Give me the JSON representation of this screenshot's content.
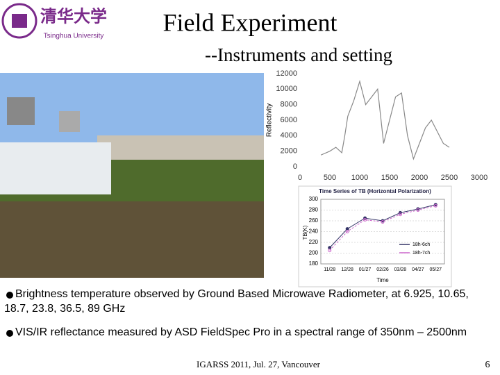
{
  "header": {
    "logo_name": "清华大学",
    "logo_subtitle": "Tsinghua University",
    "title": "Field Experiment",
    "subtitle": "--Instruments and setting"
  },
  "bullets": [
    "Brightness temperature observed by Ground Based Microwave Radiometer, at 6.925, 10.65, 18.7, 23.8, 36.5, 89 GHz",
    "VIS/IR reflectance measured by ASD FieldSpec Pro in a spectral range of 350nm – 2500nm"
  ],
  "footer": {
    "text": "IGARSS 2011, Jul. 27, Vancouver",
    "page": "6"
  },
  "chart_data": [
    {
      "type": "line",
      "y_label": "Reflectivity",
      "x": [
        350,
        500,
        600,
        700,
        750,
        800,
        900,
        1000,
        1100,
        1200,
        1300,
        1400,
        1500,
        1600,
        1700,
        1800,
        1900,
        2000,
        2100,
        2200,
        2300,
        2400,
        2500
      ],
      "values": [
        1500,
        2000,
        2500,
        1800,
        4000,
        6500,
        8500,
        11000,
        8000,
        9000,
        10000,
        3000,
        6000,
        9000,
        9500,
        4000,
        1000,
        3000,
        5000,
        6000,
        4500,
        3000,
        2500
      ],
      "color": "#888888",
      "xlim": [
        0,
        3000
      ],
      "xticks": [
        0,
        500,
        1000,
        1500,
        2000,
        2500,
        3000
      ],
      "ylim": [
        0,
        12000
      ],
      "yticks": [
        0,
        2000,
        4000,
        6000,
        8000,
        10000,
        12000
      ]
    },
    {
      "type": "line",
      "title": "Time Series of TB (Horizontal Polarization)",
      "y_label": "TB(K)",
      "x_label": "Time",
      "categories": [
        "11/28",
        "12/28",
        "01/27",
        "02/26",
        "03/28",
        "04/27",
        "05/27"
      ],
      "series": [
        {
          "name": "18h-6ch",
          "color": "#333366",
          "values": [
            210,
            245,
            265,
            260,
            275,
            282,
            290
          ]
        },
        {
          "name": "18h-7ch",
          "color": "#cc66cc",
          "values": [
            205,
            240,
            262,
            258,
            272,
            280,
            288
          ]
        }
      ],
      "ylim": [
        180,
        300
      ],
      "yticks": [
        180,
        200,
        220,
        240,
        260,
        280,
        300
      ],
      "grid": true
    }
  ]
}
